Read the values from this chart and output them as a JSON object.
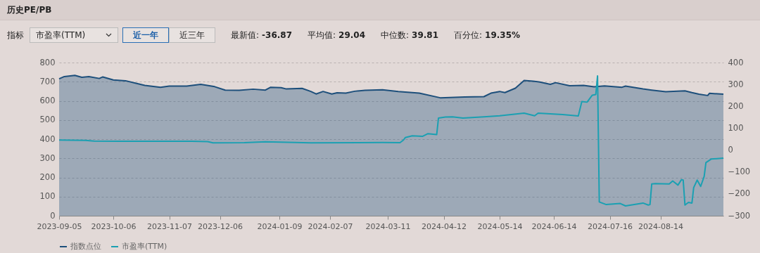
{
  "chart_data": {
    "type": "area",
    "title": "历史PE/PB",
    "annotations": [
      "指标",
      "市盈率(TTM)",
      "近一年",
      "近三年",
      "最新值: -36.87",
      "平均值: 29.04",
      "中位数: 39.81",
      "百分位: 19.35%"
    ],
    "xlim": [
      "2023-09-05",
      "2024-09-19"
    ],
    "xticks": [
      "2023-09-05",
      "2023-10-06",
      "2023-11-07",
      "2023-12-06",
      "2024-01-09",
      "2024-02-07",
      "2024-03-11",
      "2024-04-12",
      "2024-05-14",
      "2024-06-14",
      "2024-07-16",
      "2024-08-14"
    ],
    "ylim": [
      0,
      800
    ],
    "yticks": [
      0,
      100,
      200,
      300,
      400,
      500,
      600,
      700,
      800
    ],
    "y2lim": [
      -300,
      400
    ],
    "y2ticks": [
      -300,
      -200,
      -100,
      0,
      100,
      200,
      300,
      400
    ],
    "grid": "y",
    "legend": "bottom",
    "series": [
      {
        "name": "指数点位",
        "type": "area",
        "color": "#1d4f7b",
        "x": [
          "2023-09-05",
          "2023-09-08",
          "2023-09-14",
          "2023-09-18",
          "2023-09-22",
          "2023-09-28",
          "2023-09-30",
          "2023-10-06",
          "2023-10-13",
          "2023-10-19",
          "2023-10-24",
          "2023-11-02",
          "2023-11-07",
          "2023-11-17",
          "2023-11-25",
          "2023-12-03",
          "2023-12-09",
          "2023-12-17",
          "2023-12-25",
          "2024-01-01",
          "2024-01-04",
          "2024-01-10",
          "2024-01-13",
          "2024-01-22",
          "2024-01-27",
          "2024-01-30",
          "2024-02-03",
          "2024-02-08",
          "2024-02-11",
          "2024-02-16",
          "2024-02-21",
          "2024-02-27",
          "2024-03-08",
          "2024-03-17",
          "2024-03-29",
          "2024-04-10",
          "2024-04-24",
          "2024-05-05",
          "2024-05-09",
          "2024-05-14",
          "2024-05-17",
          "2024-05-23",
          "2024-05-28",
          "2024-06-02",
          "2024-06-06",
          "2024-06-12",
          "2024-06-15",
          "2024-06-23",
          "2024-07-01",
          "2024-07-07",
          "2024-07-13",
          "2024-07-23",
          "2024-07-25",
          "2024-08-04",
          "2024-08-09",
          "2024-08-17",
          "2024-08-28",
          "2024-09-01",
          "2024-09-05",
          "2024-09-10",
          "2024-09-11",
          "2024-09-19"
        ],
        "values": [
          715,
          727,
          733,
          723,
          727,
          717,
          725,
          709,
          705,
          692,
          681,
          671,
          677,
          677,
          686,
          674,
          656,
          655,
          661,
          656,
          671,
          669,
          662,
          665,
          649,
          636,
          649,
          636,
          642,
          640,
          650,
          655,
          658,
          649,
          640,
          616,
          620,
          622,
          640,
          649,
          643,
          666,
          706,
          703,
          698,
          686,
          695,
          679,
          681,
          673,
          678,
          671,
          677,
          662,
          656,
          648,
          652,
          643,
          635,
          628,
          639,
          635
        ]
      },
      {
        "name": "市盈率(TTM)",
        "type": "line",
        "axis": "y2",
        "color": "#1ba0b2",
        "x": [
          "2023-09-05",
          "2023-09-20",
          "2023-09-25",
          "2023-10-10",
          "2023-11-20",
          "2023-11-29",
          "2023-12-02",
          "2023-12-20",
          "2024-01-01",
          "2024-01-27",
          "2024-03-08",
          "2024-03-18",
          "2024-03-20",
          "2024-03-21",
          "2024-03-25",
          "2024-03-31",
          "2024-04-03",
          "2024-04-08",
          "2024-04-09",
          "2024-04-13",
          "2024-04-17",
          "2024-04-23",
          "2024-05-05",
          "2024-05-14",
          "2024-05-28",
          "2024-06-03",
          "2024-06-05",
          "2024-06-19",
          "2024-06-28",
          "2024-06-30",
          "2024-07-03",
          "2024-07-06",
          "2024-07-08",
          "2024-07-09",
          "2024-07-10",
          "2024-07-14",
          "2024-07-22",
          "2024-07-25",
          "2024-08-04",
          "2024-08-07",
          "2024-08-08",
          "2024-08-09",
          "2024-08-11",
          "2024-08-19",
          "2024-08-21",
          "2024-08-24",
          "2024-08-26",
          "2024-08-27",
          "2024-08-28",
          "2024-08-30",
          "2024-09-01",
          "2024-09-02",
          "2024-09-04",
          "2024-09-06",
          "2024-09-08",
          "2024-09-09",
          "2024-09-12",
          "2024-09-19"
        ],
        "values": [
          46,
          44,
          41,
          40,
          40,
          39,
          33,
          34,
          38,
          33,
          35,
          34,
          46,
          57,
          65,
          63,
          75,
          71,
          146,
          151,
          152,
          146,
          152,
          157,
          169,
          157,
          169,
          162,
          156,
          222,
          219,
          251,
          254,
          339,
          -237,
          -249,
          -244,
          -255,
          -242,
          -251,
          -249,
          -155,
          -153,
          -155,
          -141,
          -160,
          -135,
          -137,
          -251,
          -239,
          -242,
          -171,
          -137,
          -166,
          -120,
          -57,
          -41,
          -37
        ]
      }
    ]
  }
}
